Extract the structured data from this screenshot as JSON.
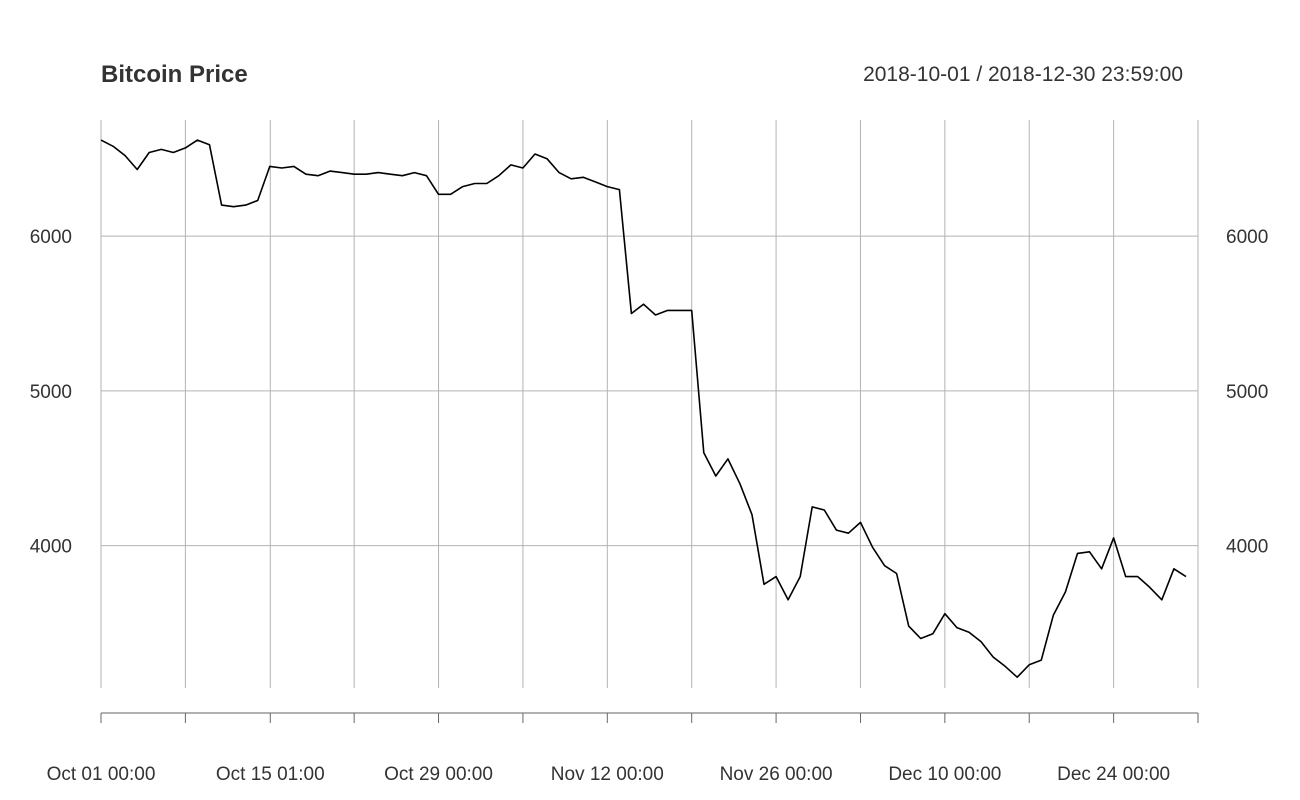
{
  "chart_data": {
    "type": "line",
    "title": "Bitcoin Price",
    "date_range": "2018-10-01 / 2018-12-30 23:59:00",
    "xlabel": "",
    "ylabel": "",
    "x_range": [
      "2018-10-01 00:00",
      "2018-12-30 23:59"
    ],
    "ylim": [
      3080,
      6750
    ],
    "y_ticks": [
      4000,
      5000,
      6000
    ],
    "y_tick_labels": [
      "4000",
      "5000",
      "6000"
    ],
    "x_gridlines": [
      "2018-10-01 00:00",
      "2018-10-08 00:00",
      "2018-10-15 01:00",
      "2018-10-22 00:00",
      "2018-10-29 00:00",
      "2018-11-05 00:00",
      "2018-11-12 00:00",
      "2018-11-19 00:00",
      "2018-11-26 00:00",
      "2018-12-03 00:00",
      "2018-12-10 00:00",
      "2018-12-17 00:00",
      "2018-12-24 00:00",
      "2018-12-30 23:59"
    ],
    "x_tick_labels": [
      {
        "at": "2018-10-01 00:00",
        "label": "Oct 01 00:00"
      },
      {
        "at": "2018-10-15 01:00",
        "label": "Oct 15 01:00"
      },
      {
        "at": "2018-10-29 00:00",
        "label": "Oct 29 00:00"
      },
      {
        "at": "2018-11-12 00:00",
        "label": "Nov 12 00:00"
      },
      {
        "at": "2018-11-26 00:00",
        "label": "Nov 26 00:00"
      },
      {
        "at": "2018-12-10 00:00",
        "label": "Dec 10 00:00"
      },
      {
        "at": "2018-12-24 00:00",
        "label": "Dec 24 00:00"
      }
    ],
    "grid": true,
    "series": [
      {
        "x": [
          "2018-10-01",
          "2018-10-02",
          "2018-10-03",
          "2018-10-04",
          "2018-10-05",
          "2018-10-06",
          "2018-10-07",
          "2018-10-08",
          "2018-10-09",
          "2018-10-10",
          "2018-10-11",
          "2018-10-12",
          "2018-10-13",
          "2018-10-14",
          "2018-10-15",
          "2018-10-16",
          "2018-10-17",
          "2018-10-18",
          "2018-10-19",
          "2018-10-20",
          "2018-10-21",
          "2018-10-22",
          "2018-10-23",
          "2018-10-24",
          "2018-10-25",
          "2018-10-26",
          "2018-10-27",
          "2018-10-28",
          "2018-10-29",
          "2018-10-30",
          "2018-10-31",
          "2018-11-01",
          "2018-11-02",
          "2018-11-03",
          "2018-11-04",
          "2018-11-05",
          "2018-11-06",
          "2018-11-07",
          "2018-11-08",
          "2018-11-09",
          "2018-11-10",
          "2018-11-11",
          "2018-11-12",
          "2018-11-13",
          "2018-11-14",
          "2018-11-15",
          "2018-11-16",
          "2018-11-17",
          "2018-11-18",
          "2018-11-19",
          "2018-11-20",
          "2018-11-21",
          "2018-11-22",
          "2018-11-23",
          "2018-11-24",
          "2018-11-25",
          "2018-11-26",
          "2018-11-27",
          "2018-11-28",
          "2018-11-29",
          "2018-11-30",
          "2018-12-01",
          "2018-12-02",
          "2018-12-03",
          "2018-12-04",
          "2018-12-05",
          "2018-12-06",
          "2018-12-07",
          "2018-12-08",
          "2018-12-09",
          "2018-12-10",
          "2018-12-11",
          "2018-12-12",
          "2018-12-13",
          "2018-12-14",
          "2018-12-15",
          "2018-12-16",
          "2018-12-17",
          "2018-12-18",
          "2018-12-19",
          "2018-12-20",
          "2018-12-21",
          "2018-12-22",
          "2018-12-23",
          "2018-12-24",
          "2018-12-25",
          "2018-12-26",
          "2018-12-27",
          "2018-12-28",
          "2018-12-29",
          "2018-12-30"
        ],
        "values": [
          6620,
          6580,
          6520,
          6430,
          6540,
          6560,
          6540,
          6570,
          6620,
          6590,
          6200,
          6190,
          6200,
          6230,
          6450,
          6440,
          6450,
          6400,
          6390,
          6420,
          6410,
          6400,
          6400,
          6410,
          6400,
          6390,
          6410,
          6390,
          6270,
          6270,
          6320,
          6340,
          6340,
          6390,
          6460,
          6440,
          6530,
          6500,
          6410,
          6370,
          6380,
          6350,
          6320,
          6300,
          5500,
          5560,
          5490,
          5520,
          5520,
          5520,
          4600,
          4450,
          4560,
          4400,
          4200,
          3750,
          3800,
          3650,
          3800,
          4250,
          4230,
          4100,
          4080,
          4150,
          3990,
          3870,
          3820,
          3480,
          3400,
          3430,
          3560,
          3470,
          3440,
          3380,
          3280,
          3220,
          3150,
          3230,
          3260,
          3550,
          3700,
          3950,
          3960,
          3850,
          4050,
          3800,
          3800,
          3730,
          3650,
          3850,
          3800
        ]
      }
    ]
  }
}
